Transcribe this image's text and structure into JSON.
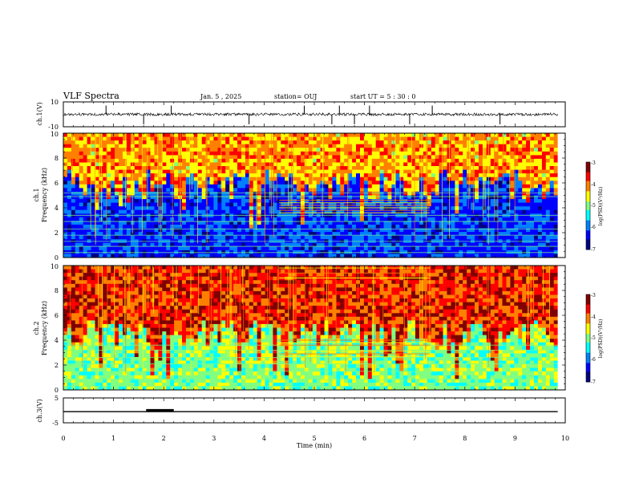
{
  "header": {
    "title": "VLF Spectra",
    "date": "Jan. 5 , 2025",
    "station": "station= OUJ",
    "start_ut": "start  UT =  5 : 30 : 0"
  },
  "colors": {
    "background": "#ffffff",
    "axis": "#000000",
    "colormap": [
      "#000080",
      "#0000ff",
      "#0080ff",
      "#00ffff",
      "#80ff80",
      "#ffff00",
      "#ff8000",
      "#ff0000",
      "#800000"
    ]
  },
  "chart_data": [
    {
      "id": "ch1-waveform",
      "type": "line",
      "ylabel": "ch.1(V)",
      "ylim": [
        -10,
        10
      ],
      "yticks": [
        "10",
        "-10"
      ],
      "xlim": [
        0,
        10
      ],
      "baseline": 0,
      "spike_times_min": [
        0.85,
        1.6,
        2.15,
        3.7,
        4.8,
        5.35,
        5.5,
        5.8,
        6.1,
        6.9,
        7.35,
        8.7
      ],
      "grid": false
    },
    {
      "id": "ch1-spectrogram",
      "type": "heatmap",
      "ylabel": "Frequency (kHz)",
      "channel_label": "ch.1",
      "ylim": [
        0,
        10
      ],
      "yticks": [
        "0",
        "2",
        "4",
        "6",
        "8",
        "10"
      ],
      "xlim": [
        0,
        9.85
      ],
      "colorbar": {
        "label": "log(PSD)(V²/Hz)",
        "range": [
          -7,
          -3
        ],
        "ticks": [
          "-3",
          "-4",
          "-5",
          "-6",
          "-7"
        ]
      },
      "quiet_floor_khz": 5.8,
      "noisy_top_level": -4.2,
      "quiet_level": -6.2,
      "band_lines_khz": [
        0.4,
        0.9,
        1.3,
        1.8,
        2.3,
        2.9,
        3.4,
        4.9,
        5.2
      ],
      "tone_segment": {
        "start_min": 4.3,
        "end_min": 7.3,
        "lines_khz": [
          3.6,
          3.8,
          4.0,
          4.2,
          4.4,
          4.6
        ]
      },
      "grid": false
    },
    {
      "id": "ch2-spectrogram",
      "type": "heatmap",
      "ylabel": "Frequency (kHz)",
      "channel_label": "ch.2",
      "ylim": [
        0,
        10
      ],
      "yticks": [
        "0",
        "2",
        "4",
        "6",
        "8",
        "10"
      ],
      "xlim": [
        0,
        9.85
      ],
      "colorbar": {
        "label": "log(PSD)(V²/Hz)",
        "range": [
          -7,
          -3
        ],
        "ticks": [
          "-3",
          "-4",
          "-5",
          "-6",
          "-7"
        ]
      },
      "quiet_floor_khz": 4.5,
      "noisy_top_level": -3.7,
      "quiet_level": -5.0,
      "band_lines_khz": [
        0.3,
        0.8,
        1.5,
        2.1,
        2.6,
        3.2,
        3.6
      ],
      "tone_segment": {
        "start_min": 4.3,
        "end_min": 7.3,
        "lines_khz": [
          2.7,
          2.9,
          3.1,
          3.6,
          3.8,
          4.0,
          9.0,
          9.4,
          9.8
        ]
      },
      "grid": false
    },
    {
      "id": "ch3-waveform",
      "type": "line",
      "ylabel": "ch.3(V)",
      "ylim": [
        -5,
        5
      ],
      "yticks": [
        "5",
        "-5"
      ],
      "xlim": [
        0,
        9.85
      ],
      "baseline": -0.5,
      "pulse": {
        "start_min": 1.65,
        "end_min": 2.2,
        "value": 0.2
      },
      "xlabel": "Time (min)",
      "xticks": [
        "0",
        "1",
        "2",
        "3",
        "4",
        "5",
        "6",
        "7",
        "8",
        "9",
        "10"
      ],
      "grid": false
    }
  ]
}
